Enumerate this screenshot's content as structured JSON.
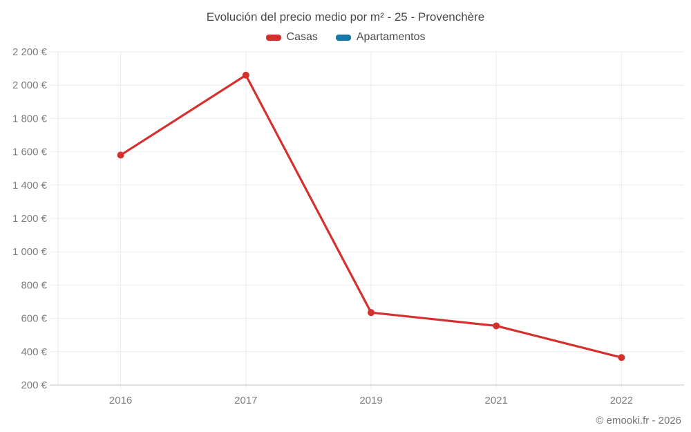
{
  "title": "Evolución del precio medio por m² - 25 - Provenchère",
  "footer": "© emooki.fr - 2026",
  "colors": {
    "gridline": "#ebebeb",
    "axis_line": "#c4c4c4",
    "plot_border": "#e6e6e6",
    "casas": "#d4302e",
    "apartamentos": "#1878a8"
  },
  "chart_data": {
    "type": "line",
    "title": "Evolución del precio medio por m² - 25 - Provenchère",
    "categories": [
      "2016",
      "2017",
      "2019",
      "2021",
      "2022"
    ],
    "series": [
      {
        "name": "Casas",
        "color": "#d4302e",
        "values": [
          1580,
          2060,
          635,
          555,
          365
        ]
      },
      {
        "name": "Apartamentos",
        "color": "#1878a8",
        "values": []
      }
    ],
    "xlabel": "",
    "ylabel": "",
    "ylim": [
      200,
      2200
    ],
    "ytick_step": 200,
    "ytick_labels": [
      "200 €",
      "400 €",
      "600 €",
      "800 €",
      "1 000 €",
      "1 200 €",
      "1 400 €",
      "1 600 €",
      "1 800 €",
      "2 000 €",
      "2 200 €"
    ],
    "grid": true,
    "legend_position": "top",
    "marker": "circle"
  }
}
